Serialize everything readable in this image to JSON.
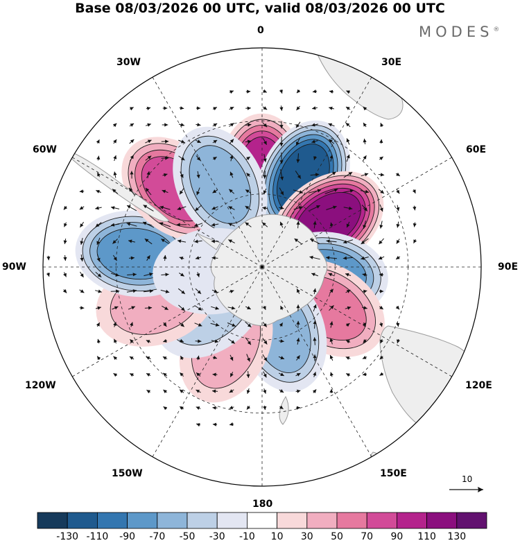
{
  "title": "Base 08/03/2026 00 UTC, valid 08/03/2026 00 UTC",
  "brand": {
    "text": "MODES",
    "mark": "®"
  },
  "longitude_labels": {
    "lon_0": "0",
    "lon_30e": "30E",
    "lon_60e": "60E",
    "lon_90e": "90E",
    "lon_120e": "120E",
    "lon_150e": "150E",
    "lon_180": "180",
    "lon_150w": "150W",
    "lon_120w": "120W",
    "lon_90w": "90W",
    "lon_60w": "60W",
    "lon_30w": "30W"
  },
  "vector_reference": {
    "value": "10"
  },
  "colorbar": {
    "tick_labels": [
      "-130",
      "-110",
      "-90",
      "-70",
      "-50",
      "-30",
      "-10",
      "10",
      "30",
      "50",
      "70",
      "90",
      "110",
      "130"
    ],
    "colors": [
      "#163a5b",
      "#1f5a8e",
      "#3376b0",
      "#5d98c9",
      "#8eb5d9",
      "#bdd0e6",
      "#e3e6f2",
      "#ffffff",
      "#f8d9da",
      "#f1aec0",
      "#e6799f",
      "#d24b98",
      "#b4238c",
      "#8b0f7e",
      "#62116f"
    ]
  },
  "anomaly_centers": [
    {
      "name": "high-0",
      "lon": 0,
      "lat": -52,
      "value": 110
    },
    {
      "name": "low-20e",
      "lon": 25,
      "lat": -50,
      "value": -120
    },
    {
      "name": "high-50e",
      "lon": 55,
      "lat": -57,
      "value": 120
    },
    {
      "name": "low-95e",
      "lon": 97,
      "lat": -63,
      "value": -75
    },
    {
      "name": "high-130e",
      "lon": 122,
      "lat": -58,
      "value": 60
    },
    {
      "name": "low-165e",
      "lon": 163,
      "lat": -62,
      "value": -55
    },
    {
      "name": "high-150w",
      "lon": -155,
      "lat": -55,
      "value": 50
    },
    {
      "name": "low-130w",
      "lon": -128,
      "lat": -63,
      "value": -40
    },
    {
      "name": "high-110w",
      "lon": -108,
      "lat": -44,
      "value": 45
    },
    {
      "name": "low-85w",
      "lon": -84,
      "lat": -38,
      "value": -75
    },
    {
      "name": "high-50w",
      "lon": -48,
      "lat": -42,
      "value": 80
    },
    {
      "name": "low-30w",
      "lon": -27,
      "lat": -52,
      "value": -60
    },
    {
      "name": "low-100w",
      "lon": -95,
      "lat": -70,
      "value": -25
    }
  ],
  "colors": {
    "land": "#eeeeee",
    "coast": "#9a9a9a",
    "grid": "#222222",
    "arrow": "#111111"
  }
}
